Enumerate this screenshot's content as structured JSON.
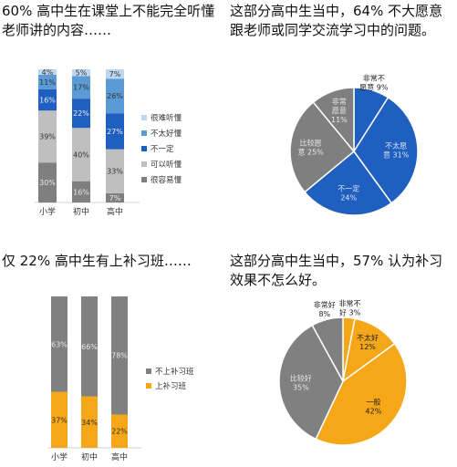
{
  "panels": {
    "p1_title": "60% 高中生在课堂上不能完全听懂老师讲的内容……",
    "p2_title": "这部分高中生当中，64% 不大愿意跟老师或同学交流学习中的问题。",
    "p3_title": "仅 22% 高中生有上补习班……",
    "p4_title": "这部分高中生当中，57% 认为补习效果不怎么好。"
  },
  "chart_data": [
    {
      "type": "bar",
      "stacked": true,
      "percent": true,
      "categories": [
        "小学",
        "初中",
        "高中"
      ],
      "series": [
        {
          "name": "很容易懂",
          "color": "#7f7f7f",
          "values": [
            30,
            16,
            7
          ]
        },
        {
          "name": "可以听懂",
          "color": "#bfbfbf",
          "values": [
            39,
            40,
            33
          ]
        },
        {
          "name": "不一定",
          "color": "#1f5fbf",
          "values": [
            16,
            22,
            27
          ]
        },
        {
          "name": "不太好懂",
          "color": "#5b9bd5",
          "values": [
            11,
            17,
            26
          ]
        },
        {
          "name": "很难听懂",
          "color": "#bdd7ee",
          "values": [
            4,
            5,
            7
          ]
        }
      ],
      "legend": "right"
    },
    {
      "type": "pie",
      "slices": [
        {
          "label": "非常不愿意",
          "value": 9,
          "display": "非常不\n愿意 9%",
          "color": "#1f5fbf"
        },
        {
          "label": "不太愿意",
          "value": 31,
          "display": "不太愿\n意 31%",
          "color": "#1f5fbf"
        },
        {
          "label": "不一定",
          "value": 24,
          "display": "不一定\n24%",
          "color": "#1f5fbf"
        },
        {
          "label": "比较愿意",
          "value": 25,
          "display": "比较愿\n意 25%",
          "color": "#7f7f7f"
        },
        {
          "label": "非常愿意",
          "value": 11,
          "display": "非常\n愿意\n11%",
          "color": "#7f7f7f"
        }
      ]
    },
    {
      "type": "bar",
      "stacked": true,
      "percent": true,
      "categories": [
        "小学",
        "初中",
        "高中"
      ],
      "series": [
        {
          "name": "上补习班",
          "color": "#f5a718",
          "values": [
            37,
            34,
            22
          ]
        },
        {
          "name": "不上补习班",
          "color": "#808080",
          "values": [
            63,
            66,
            78
          ]
        }
      ],
      "legend": "right"
    },
    {
      "type": "pie",
      "slices": [
        {
          "label": "非常不好",
          "value": 3,
          "display": "非常不\n好 3%",
          "color": "#f5a718"
        },
        {
          "label": "不太好",
          "value": 12,
          "display": "不太好\n12%",
          "color": "#f5a718"
        },
        {
          "label": "一般",
          "value": 42,
          "display": "一般\n42%",
          "color": "#f5a718"
        },
        {
          "label": "比较好",
          "value": 35,
          "display": "比较好\n35%",
          "color": "#808080"
        },
        {
          "label": "非常好",
          "value": 8,
          "display": "非常好\n8%",
          "color": "#808080"
        }
      ]
    }
  ]
}
